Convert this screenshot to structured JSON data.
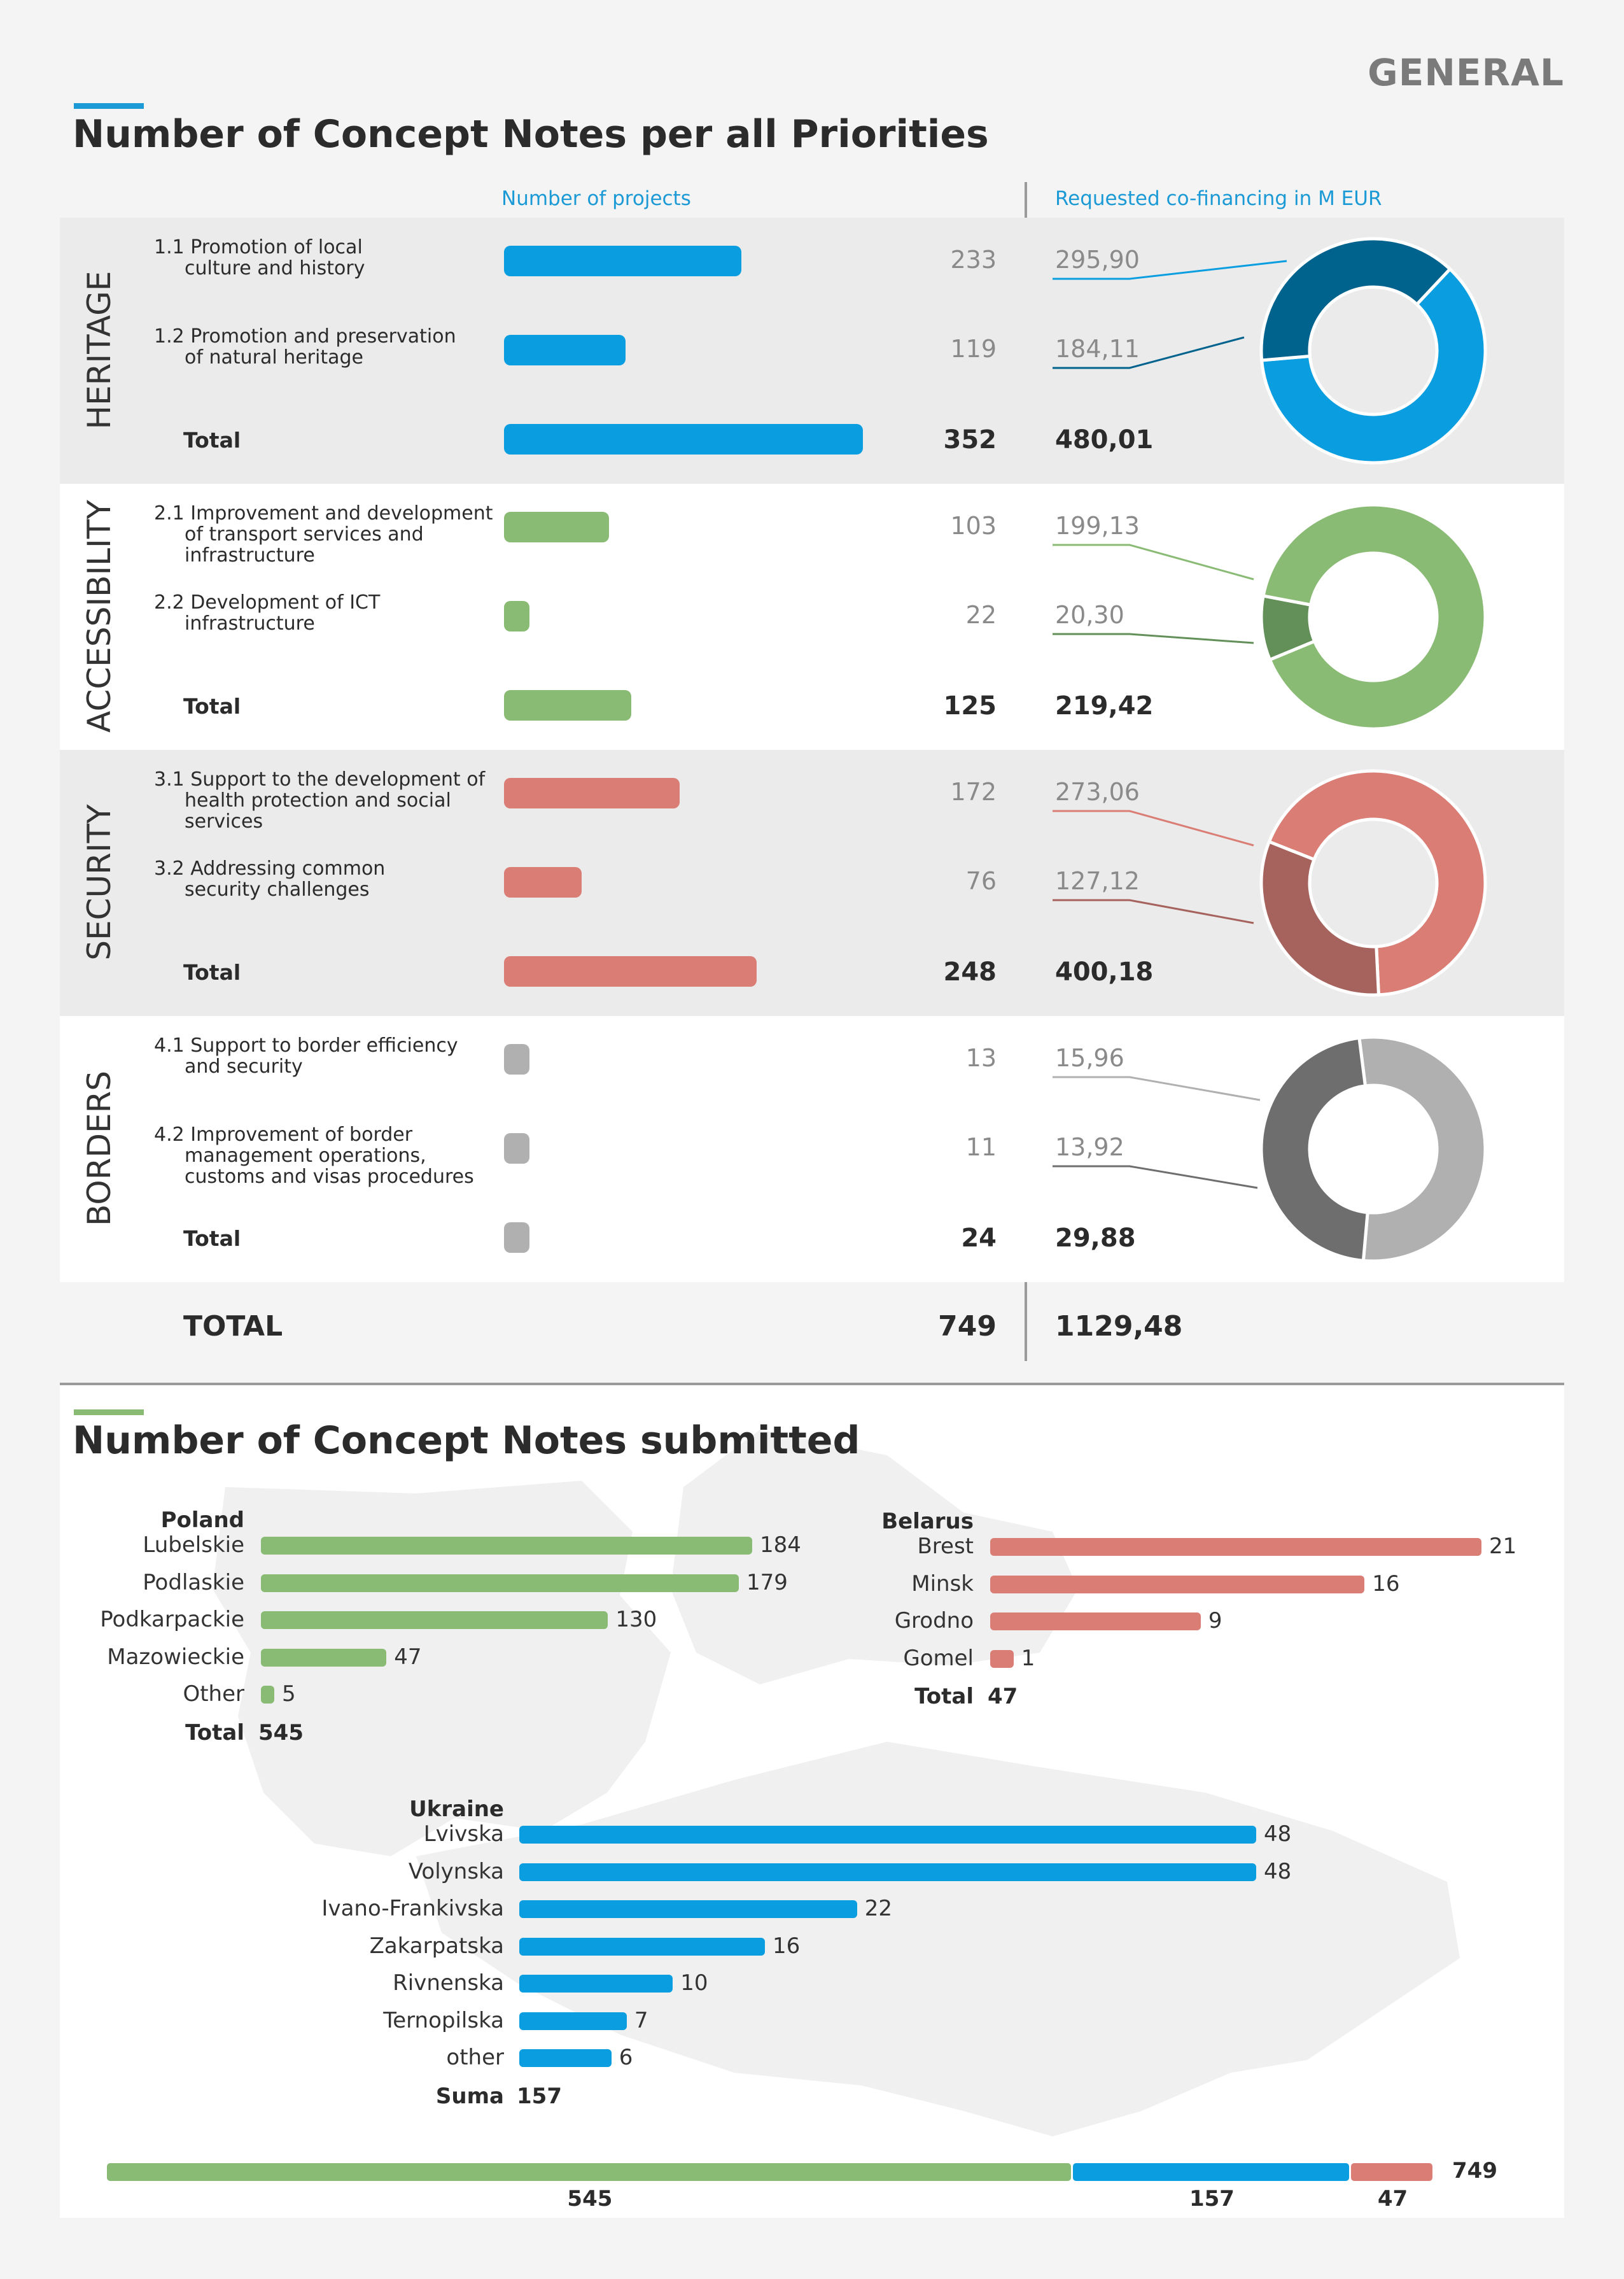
{
  "header": {
    "section_tag": "GENERAL"
  },
  "colors": {
    "heritage": "#0a9ee0",
    "heritage_dark": "#00638e",
    "accessibility": "#8abb74",
    "accessibility_dark": "#638f58",
    "security": "#d97d75",
    "security_dark": "#a6635d",
    "borders": "#b0b0b0",
    "borders_dark": "#6e6e6e",
    "poland": "#8abb74",
    "belarus": "#d97d75",
    "ukraine": "#0a9ee0"
  },
  "priorities_section": {
    "title": "Number of Concept Notes per all Priorities",
    "col_projects": "Number of projects",
    "col_cofinancing": "Requested co-financing in M EUR",
    "total_label": "TOTAL",
    "total_projects": "749",
    "total_eur": "1129,48"
  },
  "chart_data": [
    {
      "type": "bar",
      "title": "Number of Concept Notes per all Priorities",
      "max_projects": 352,
      "priorities": [
        {
          "name": "HERITAGE",
          "color_key": "heritage",
          "items": [
            {
              "label_line1": "1.1 Promotion of local",
              "label_rest": [
                "culture and history"
              ],
              "projects": 233,
              "eur": "295,90",
              "eur_value": 295.9
            },
            {
              "label_line1": "1.2 Promotion and preservation",
              "label_rest": [
                "of natural heritage"
              ],
              "projects": 119,
              "eur": "184,11",
              "eur_value": 184.11
            }
          ],
          "total_label": "Total",
          "total_projects": 352,
          "total_eur": "480,01"
        },
        {
          "name": "ACCESSIBILITY",
          "color_key": "accessibility",
          "items": [
            {
              "label_line1": "2.1 Improvement and development",
              "label_rest": [
                "of transport services and",
                "infrastructure"
              ],
              "projects": 103,
              "eur": "199,13",
              "eur_value": 199.13
            },
            {
              "label_line1": "2.2 Development of ICT",
              "label_rest": [
                "infrastructure"
              ],
              "projects": 22,
              "eur": "20,30",
              "eur_value": 20.3
            }
          ],
          "total_label": "Total",
          "total_projects": 125,
          "total_eur": "219,42"
        },
        {
          "name": "SECURITY",
          "color_key": "security",
          "items": [
            {
              "label_line1": "3.1 Support to the development of",
              "label_rest": [
                "health protection and social",
                "services"
              ],
              "projects": 172,
              "eur": "273,06",
              "eur_value": 273.06
            },
            {
              "label_line1": "3.2 Addressing common",
              "label_rest": [
                "security challenges"
              ],
              "projects": 76,
              "eur": "127,12",
              "eur_value": 127.12
            }
          ],
          "total_label": "Total",
          "total_projects": 248,
          "total_eur": "400,18"
        },
        {
          "name": "BORDERS",
          "color_key": "borders",
          "items": [
            {
              "label_line1": "4.1 Support to border efficiency",
              "label_rest": [
                "and security"
              ],
              "projects": 13,
              "eur": "15,96",
              "eur_value": 15.96
            },
            {
              "label_line1": "4.2 Improvement of border",
              "label_rest": [
                "management operations,",
                "customs and visas procedures"
              ],
              "projects": 11,
              "eur": "13,92",
              "eur_value": 13.92
            }
          ],
          "total_label": "Total",
          "total_projects": 24,
          "total_eur": "29,88"
        }
      ]
    },
    {
      "type": "bar",
      "title": "Number of Concept Notes submitted",
      "countries": [
        {
          "name": "Poland",
          "color_key": "poland",
          "max": 184,
          "regions": [
            {
              "label": "Lubelskie",
              "value": 184
            },
            {
              "label": "Podlaskie",
              "value": 179
            },
            {
              "label": "Podkarpackie",
              "value": 130
            },
            {
              "label": "Mazowieckie",
              "value": 47
            },
            {
              "label": "Other",
              "value": 5
            }
          ],
          "total_label": "Total",
          "total": 545
        },
        {
          "name": "Belarus",
          "color_key": "belarus",
          "max": 21,
          "regions": [
            {
              "label": "Brest",
              "value": 21
            },
            {
              "label": "Minsk",
              "value": 16
            },
            {
              "label": "Grodno",
              "value": 9
            },
            {
              "label": "Gomel",
              "value": 1
            }
          ],
          "total_label": "Total",
          "total": 47
        },
        {
          "name": "Ukraine",
          "color_key": "ukraine",
          "max": 48,
          "regions": [
            {
              "label": "Lvivska",
              "value": 48
            },
            {
              "label": "Volynska",
              "value": 48
            },
            {
              "label": "Ivano-Frankivska",
              "value": 22
            },
            {
              "label": "Zakarpatska",
              "value": 16
            },
            {
              "label": "Rivnenska",
              "value": 10
            },
            {
              "label": "Ternopilska",
              "value": 7
            },
            {
              "label": "other",
              "value": 6
            }
          ],
          "total_label": "Suma",
          "total": 157
        }
      ],
      "stacked_total": {
        "segments": [
          {
            "value": 545,
            "color_key": "poland"
          },
          {
            "value": 157,
            "color_key": "ukraine"
          },
          {
            "value": 47,
            "color_key": "belarus"
          }
        ],
        "total": 749
      }
    }
  ],
  "submitted_section": {
    "title": "Number of Concept Notes submitted"
  }
}
